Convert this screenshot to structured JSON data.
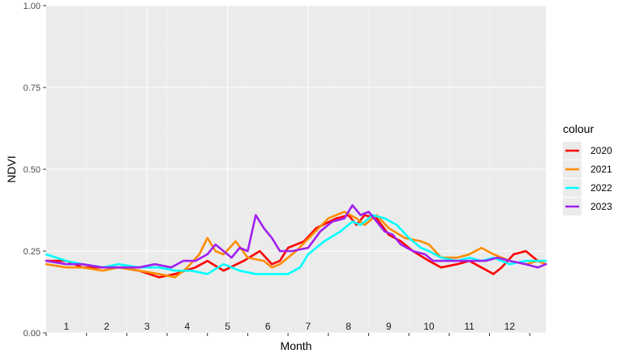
{
  "chart_data": {
    "type": "line",
    "xlabel": "Month",
    "ylabel": "NDVI",
    "ylim": [
      0,
      1
    ],
    "xlim": [
      0.5,
      12.9
    ],
    "y_ticks": [
      "0.00",
      "0.25",
      "0.50",
      "0.75",
      "1.00"
    ],
    "y_tick_values": [
      0,
      0.25,
      0.5,
      0.75,
      1
    ],
    "month_labels": [
      "1",
      "2",
      "3",
      "4",
      "5",
      "6",
      "7",
      "8",
      "9",
      "10",
      "11",
      "12"
    ],
    "grid": true,
    "legend": {
      "title": "colour",
      "position": "right"
    },
    "series": [
      {
        "name": "2020",
        "color": "#ff0000",
        "x": [
          0.5,
          1.0,
          1.4,
          1.9,
          2.3,
          2.8,
          3.3,
          3.7,
          4.2,
          4.5,
          4.9,
          5.4,
          5.8,
          6.1,
          6.3,
          6.5,
          6.9,
          7.2,
          7.7,
          8.0,
          8.2,
          8.4,
          8.7,
          9.0,
          9.3,
          9.6,
          10.0,
          10.3,
          10.7,
          11.0,
          11.3,
          11.6,
          11.8,
          12.1,
          12.4,
          12.7,
          12.9
        ],
        "y": [
          0.22,
          0.22,
          0.2,
          0.2,
          0.2,
          0.19,
          0.17,
          0.18,
          0.2,
          0.22,
          0.19,
          0.22,
          0.25,
          0.21,
          0.22,
          0.26,
          0.28,
          0.32,
          0.35,
          0.36,
          0.33,
          0.36,
          0.35,
          0.3,
          0.28,
          0.25,
          0.22,
          0.2,
          0.21,
          0.22,
          0.2,
          0.18,
          0.2,
          0.24,
          0.25,
          0.22,
          0.21
        ]
      },
      {
        "name": "2021",
        "color": "#ff8c00",
        "x": [
          0.5,
          1.0,
          1.4,
          1.9,
          2.3,
          2.8,
          3.3,
          3.7,
          4.0,
          4.3,
          4.5,
          4.7,
          4.9,
          5.2,
          5.5,
          5.9,
          6.1,
          6.3,
          6.7,
          7.1,
          7.5,
          7.9,
          8.2,
          8.4,
          8.7,
          9.0,
          9.4,
          9.8,
          10.0,
          10.3,
          10.7,
          11.0,
          11.3,
          11.6,
          12.0,
          12.4,
          12.7,
          12.9
        ],
        "y": [
          0.21,
          0.2,
          0.2,
          0.19,
          0.2,
          0.19,
          0.18,
          0.17,
          0.2,
          0.24,
          0.29,
          0.25,
          0.24,
          0.28,
          0.23,
          0.22,
          0.2,
          0.21,
          0.25,
          0.3,
          0.35,
          0.37,
          0.35,
          0.33,
          0.36,
          0.32,
          0.29,
          0.28,
          0.27,
          0.23,
          0.23,
          0.24,
          0.26,
          0.24,
          0.22,
          0.21,
          0.22,
          0.21
        ]
      },
      {
        "name": "2022",
        "color": "#00ffff",
        "x": [
          0.5,
          1.0,
          1.4,
          1.9,
          2.3,
          2.8,
          3.3,
          3.7,
          4.1,
          4.5,
          4.9,
          5.3,
          5.7,
          6.0,
          6.3,
          6.5,
          6.8,
          7.0,
          7.4,
          7.8,
          8.1,
          8.3,
          8.6,
          8.9,
          9.2,
          9.5,
          9.8,
          10.0,
          10.3,
          10.7,
          11.0,
          11.3,
          11.6,
          12.0,
          12.4,
          12.7,
          12.9
        ],
        "y": [
          0.24,
          0.22,
          0.21,
          0.2,
          0.21,
          0.2,
          0.2,
          0.19,
          0.19,
          0.18,
          0.21,
          0.19,
          0.18,
          0.18,
          0.18,
          0.18,
          0.2,
          0.24,
          0.28,
          0.31,
          0.34,
          0.33,
          0.36,
          0.35,
          0.33,
          0.29,
          0.26,
          0.25,
          0.23,
          0.22,
          0.23,
          0.22,
          0.23,
          0.21,
          0.22,
          0.22,
          0.22
        ]
      },
      {
        "name": "2023",
        "color": "#a020f0",
        "x": [
          0.5,
          1.0,
          1.4,
          1.9,
          2.3,
          2.8,
          3.2,
          3.6,
          3.9,
          4.2,
          4.5,
          4.7,
          4.9,
          5.1,
          5.3,
          5.5,
          5.7,
          5.9,
          6.1,
          6.3,
          6.6,
          7.0,
          7.3,
          7.6,
          7.9,
          8.1,
          8.3,
          8.5,
          8.7,
          8.9,
          9.1,
          9.3,
          9.6,
          9.9,
          10.1,
          10.4,
          10.8,
          11.1,
          11.4,
          11.7,
          12.0,
          12.4,
          12.7,
          12.9
        ],
        "y": [
          0.22,
          0.21,
          0.21,
          0.2,
          0.2,
          0.2,
          0.21,
          0.2,
          0.22,
          0.22,
          0.24,
          0.27,
          0.25,
          0.23,
          0.26,
          0.25,
          0.36,
          0.32,
          0.29,
          0.25,
          0.25,
          0.26,
          0.31,
          0.34,
          0.35,
          0.39,
          0.36,
          0.37,
          0.34,
          0.31,
          0.3,
          0.27,
          0.25,
          0.24,
          0.22,
          0.22,
          0.22,
          0.22,
          0.22,
          0.23,
          0.22,
          0.21,
          0.2,
          0.21
        ]
      }
    ]
  }
}
